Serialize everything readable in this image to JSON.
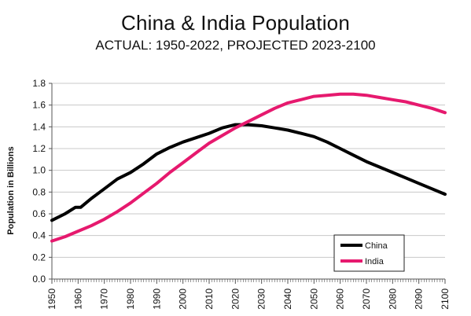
{
  "chart_data": {
    "type": "line",
    "title": "China & India Population",
    "subtitle": "ACTUAL: 1950-2022, PROJECTED 2023-2100",
    "xlabel": "",
    "ylabel": "Population in Billions",
    "xlim": [
      1950,
      2100
    ],
    "ylim": [
      0,
      1.8
    ],
    "yticks": [
      "0.0",
      "0.2",
      "0.4",
      "0.6",
      "0.8",
      "1.0",
      "1.2",
      "1.4",
      "1.6",
      "1.8"
    ],
    "xticks": [
      "1950",
      "1960",
      "1970",
      "1980",
      "1990",
      "2000",
      "2010",
      "2020",
      "2030",
      "2040",
      "2050",
      "2060",
      "2070",
      "2080",
      "2090",
      "2100"
    ],
    "grid": true,
    "legend_position": "bottom-right",
    "series": [
      {
        "name": "China",
        "color": "#000000",
        "x": [
          1950,
          1955,
          1959,
          1961,
          1965,
          1970,
          1975,
          1980,
          1985,
          1990,
          1995,
          2000,
          2005,
          2010,
          2015,
          2020,
          2022,
          2025,
          2030,
          2035,
          2040,
          2045,
          2050,
          2055,
          2060,
          2065,
          2070,
          2075,
          2080,
          2085,
          2090,
          2095,
          2100
        ],
        "values": [
          0.54,
          0.6,
          0.66,
          0.66,
          0.74,
          0.83,
          0.92,
          0.98,
          1.06,
          1.15,
          1.21,
          1.26,
          1.3,
          1.34,
          1.39,
          1.42,
          1.42,
          1.42,
          1.41,
          1.39,
          1.37,
          1.34,
          1.31,
          1.26,
          1.2,
          1.14,
          1.08,
          1.03,
          0.98,
          0.93,
          0.88,
          0.83,
          0.78
        ]
      },
      {
        "name": "India",
        "color": "#e6196e",
        "x": [
          1950,
          1955,
          1960,
          1965,
          1970,
          1975,
          1980,
          1985,
          1990,
          1995,
          2000,
          2005,
          2010,
          2015,
          2020,
          2025,
          2030,
          2035,
          2040,
          2045,
          2050,
          2055,
          2060,
          2065,
          2070,
          2075,
          2080,
          2085,
          2090,
          2095,
          2100
        ],
        "values": [
          0.35,
          0.39,
          0.44,
          0.49,
          0.55,
          0.62,
          0.7,
          0.79,
          0.88,
          0.98,
          1.07,
          1.16,
          1.25,
          1.32,
          1.39,
          1.45,
          1.51,
          1.57,
          1.62,
          1.65,
          1.68,
          1.69,
          1.7,
          1.7,
          1.69,
          1.67,
          1.65,
          1.63,
          1.6,
          1.57,
          1.53
        ]
      }
    ]
  }
}
